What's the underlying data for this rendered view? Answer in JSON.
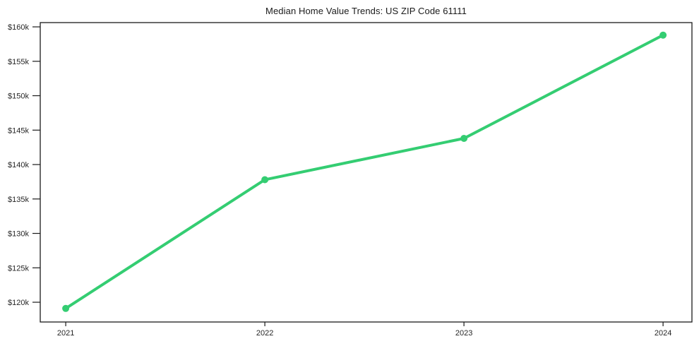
{
  "figure": {
    "background": "#ffffff"
  },
  "chart_data": {
    "type": "line",
    "title": "Median Home Value Trends: US ZIP Code 61111",
    "x": [
      2021,
      2022,
      2023,
      2024
    ],
    "x_tick_labels": [
      "2021",
      "2022",
      "2023",
      "2024"
    ],
    "series": [
      {
        "name": "median-home-value",
        "values": [
          119100,
          137800,
          143800,
          158800
        ],
        "color": "#34cd72",
        "line_width": 4,
        "marker": "circle",
        "marker_radius": 5
      }
    ],
    "y_ticks": [
      120000,
      125000,
      130000,
      135000,
      140000,
      145000,
      150000,
      155000,
      160000
    ],
    "y_tick_labels": [
      "$120k",
      "$125k",
      "$130k",
      "$135k",
      "$140k",
      "$145k",
      "$150k",
      "$155k",
      "$160k"
    ],
    "xlim": [
      2020.872,
      2024.145
    ],
    "ylim": [
      117130,
      160620
    ],
    "xlabel": "",
    "ylabel": "",
    "grid": false,
    "legend_position": "none",
    "axis_box": true,
    "axis_color": "#1a1a1a",
    "tick_color": "#1a1a1a",
    "tick_text_color": "#262626"
  }
}
